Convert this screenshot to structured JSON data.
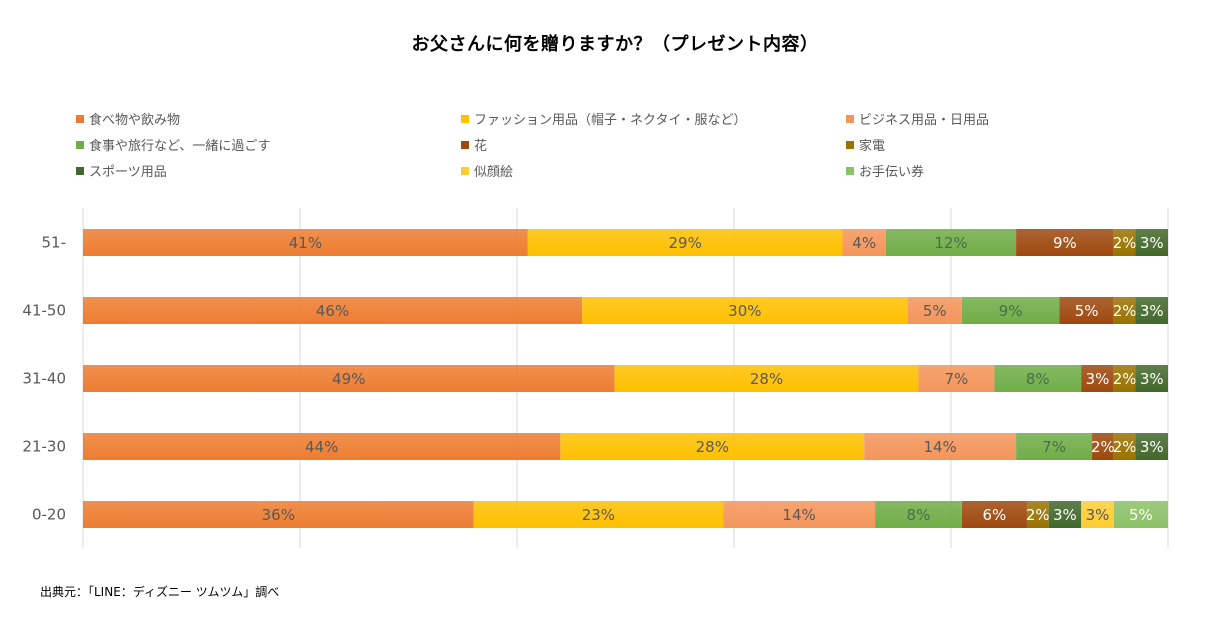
{
  "title": "お父さんに何を贈りますか？（プレゼント内容）",
  "source": "出典元：「LINE：ディズニー ツムツム」調べ",
  "chart_data": {
    "type": "bar",
    "orientation": "horizontal",
    "stacked": "percent",
    "title": "お父さんに何を贈りますか？（プレゼント内容）",
    "xlabel": "",
    "ylabel": "",
    "xlim": [
      0,
      100
    ],
    "grid": true,
    "legend_position": "top",
    "categories": [
      "51-",
      "41-50",
      "31-40",
      "21-30",
      "0-20"
    ],
    "series": [
      {
        "name": "食べ物や飲み物",
        "color": "#ED7D31",
        "label_color": "#595959",
        "values": [
          41,
          46,
          49,
          44,
          36
        ]
      },
      {
        "name": "ファッション用品（帽子・ネクタイ・服など）",
        "color": "#FFC000",
        "label_color": "#595959",
        "values": [
          29,
          30,
          28,
          28,
          23
        ]
      },
      {
        "name": "ビジネス用品・日用品",
        "color": "#F4955A",
        "label_color": "#595959",
        "values": [
          4,
          5,
          7,
          14,
          14
        ]
      },
      {
        "name": "食事や旅行など、一緒に過ごす",
        "color": "#70AD47",
        "label_color": "#44704A",
        "values": [
          12,
          9,
          8,
          7,
          8
        ]
      },
      {
        "name": "花",
        "color": "#9E480E",
        "label_color": "#FFFFFF",
        "values": [
          9,
          5,
          3,
          2,
          6
        ]
      },
      {
        "name": "家電",
        "color": "#997300",
        "label_color": "#FFFFFF",
        "values": [
          2,
          2,
          2,
          2,
          2
        ]
      },
      {
        "name": "スポーツ用品",
        "color": "#43682B",
        "label_color": "#FFFFFF",
        "values": [
          3,
          3,
          3,
          3,
          3
        ]
      },
      {
        "name": "似顔絵",
        "color": "#FFCD33",
        "label_color": "#595959",
        "values": [
          0,
          0,
          0,
          0,
          3
        ]
      },
      {
        "name": "お手伝い券",
        "color": "#8CC168",
        "label_color": "#FFFFFF",
        "values": [
          0,
          0,
          0,
          0,
          5
        ]
      }
    ],
    "value_suffix": "%"
  }
}
